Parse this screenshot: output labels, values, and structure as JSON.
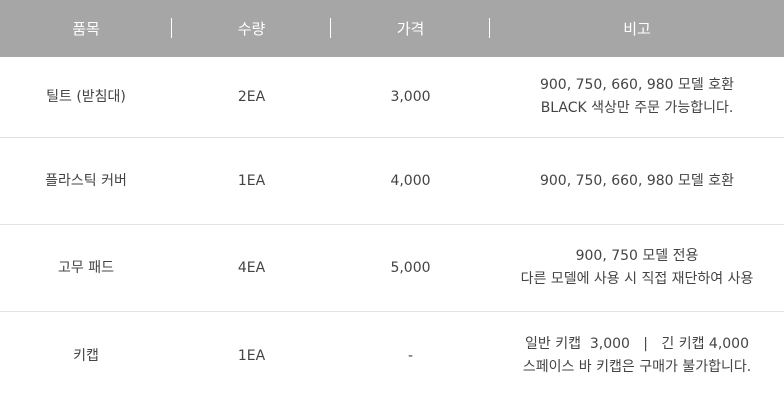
{
  "table": {
    "headers": [
      "품목",
      "수량",
      "가격",
      "비고"
    ],
    "rows": [
      {
        "item": "틸트 (받침대)",
        "qty": "2EA",
        "price": "3,000",
        "note": [
          "900, 750, 660, 980 모델 호환",
          "BLACK 색상만 주문 가능합니다."
        ]
      },
      {
        "item": "플라스틱 커버",
        "qty": "1EA",
        "price": "4,000",
        "note": [
          "900, 750, 660, 980 모델 호환"
        ]
      },
      {
        "item": "고무 패드",
        "qty": "4EA",
        "price": "5,000",
        "note": [
          "900, 750 모델 전용",
          "다른 모델에 사용 시 직접 재단하여 사용"
        ]
      },
      {
        "item": "키캡",
        "qty": "1EA",
        "price": "-",
        "note": [
          "일반 키캡  3,000   |   긴 키캡 4,000",
          "스페이스 바 키캡은 구매가 불가합니다."
        ]
      }
    ]
  },
  "colors": {
    "header_bg": "#a6a6a6",
    "header_text": "#ffffff",
    "row_border": "#e3e3e3",
    "body_text": "#444444"
  }
}
